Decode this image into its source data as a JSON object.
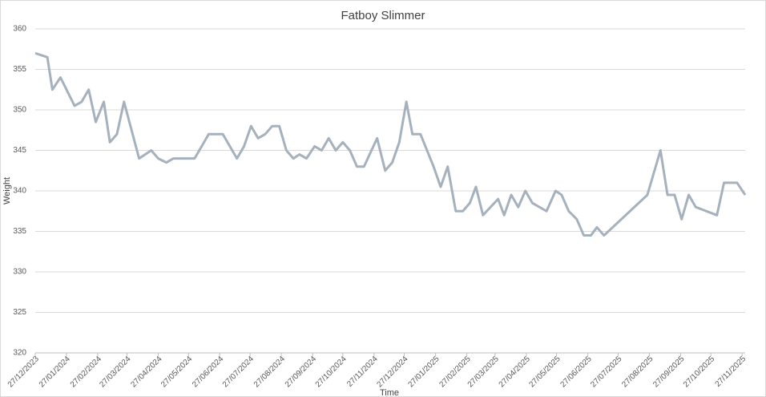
{
  "chart_data": {
    "type": "line",
    "title": "Fatboy Slimmer",
    "x_label": "Time",
    "y_label": "Weight",
    "x": [
      "27/12/2023",
      "08/01/2024",
      "13/01/2024",
      "21/01/2024",
      "29/01/2024",
      "04/02/2024",
      "11/02/2024",
      "18/02/2024",
      "25/02/2024",
      "04/03/2024",
      "10/03/2024",
      "17/03/2024",
      "24/03/2024",
      "08/04/2024",
      "20/04/2024",
      "27/04/2024",
      "05/05/2024",
      "12/05/2024",
      "02/06/2024",
      "16/06/2024",
      "30/06/2024",
      "14/07/2024",
      "21/07/2024",
      "28/07/2024",
      "04/08/2024",
      "11/08/2024",
      "18/08/2024",
      "25/08/2024",
      "01/09/2024",
      "08/09/2024",
      "14/09/2024",
      "21/09/2024",
      "29/09/2024",
      "06/10/2024",
      "13/10/2024",
      "20/10/2024",
      "27/10/2024",
      "03/11/2024",
      "10/11/2024",
      "17/11/2024",
      "30/11/2024",
      "08/12/2024",
      "15/12/2024",
      "22/12/2024",
      "29/12/2024",
      "04/01/2025",
      "12/01/2025",
      "25/01/2025",
      "01/02/2025",
      "08/02/2025",
      "16/02/2025",
      "23/02/2025",
      "02/03/2025",
      "08/03/2025",
      "15/03/2025",
      "30/03/2025",
      "05/04/2025",
      "12/04/2025",
      "19/04/2025",
      "26/04/2025",
      "03/05/2025",
      "17/05/2025",
      "26/05/2025",
      "01/06/2025",
      "08/06/2025",
      "16/06/2025",
      "23/06/2025",
      "30/06/2025",
      "06/07/2025",
      "13/07/2025",
      "25/08/2025",
      "07/09/2025",
      "14/09/2025",
      "21/09/2025",
      "28/09/2025",
      "05/10/2025",
      "12/10/2025",
      "02/11/2025",
      "09/11/2025",
      "22/11/2025",
      "30/11/2025"
    ],
    "series": [
      {
        "name": "Weight",
        "color": "#a5b1bd",
        "values": [
          357,
          356.5,
          352.5,
          354,
          352,
          350.5,
          351,
          352.5,
          348.5,
          351,
          346,
          347,
          351,
          344,
          345,
          344,
          343.5,
          344,
          344,
          347,
          347,
          344,
          345.5,
          348,
          346.5,
          347,
          348,
          348,
          345,
          344,
          344.5,
          344,
          345.5,
          345,
          346.5,
          345,
          346,
          345,
          343,
          343,
          346.5,
          342.5,
          343.5,
          346,
          351,
          347,
          347,
          343,
          340.5,
          343,
          337.5,
          337.5,
          338.5,
          340.5,
          337,
          339,
          337,
          339.5,
          338,
          340,
          338.5,
          337.5,
          340,
          339.5,
          337.5,
          336.5,
          334.5,
          334.5,
          335.5,
          334.5,
          339.5,
          345,
          339.5,
          339.5,
          336.5,
          339.5,
          338,
          337,
          341,
          341,
          339.5
        ]
      }
    ],
    "xlim": [
      "27/12/2023",
      "30/11/2025"
    ],
    "xticks": [
      "27/12/2023",
      "27/01/2024",
      "27/02/2024",
      "27/03/2024",
      "27/04/2024",
      "27/05/2024",
      "27/06/2024",
      "27/07/2024",
      "27/08/2024",
      "27/09/2024",
      "27/10/2024",
      "27/11/2024",
      "27/12/2024",
      "27/01/2025",
      "27/02/2025",
      "27/03/2025",
      "27/04/2025",
      "27/05/2025",
      "27/06/2025",
      "27/07/2025",
      "27/08/2025",
      "27/09/2025",
      "27/10/2025",
      "27/11/2025"
    ],
    "ylim": [
      320,
      360
    ],
    "yticks": [
      320,
      325,
      330,
      335,
      340,
      345,
      350,
      355,
      360
    ],
    "grid": true
  }
}
